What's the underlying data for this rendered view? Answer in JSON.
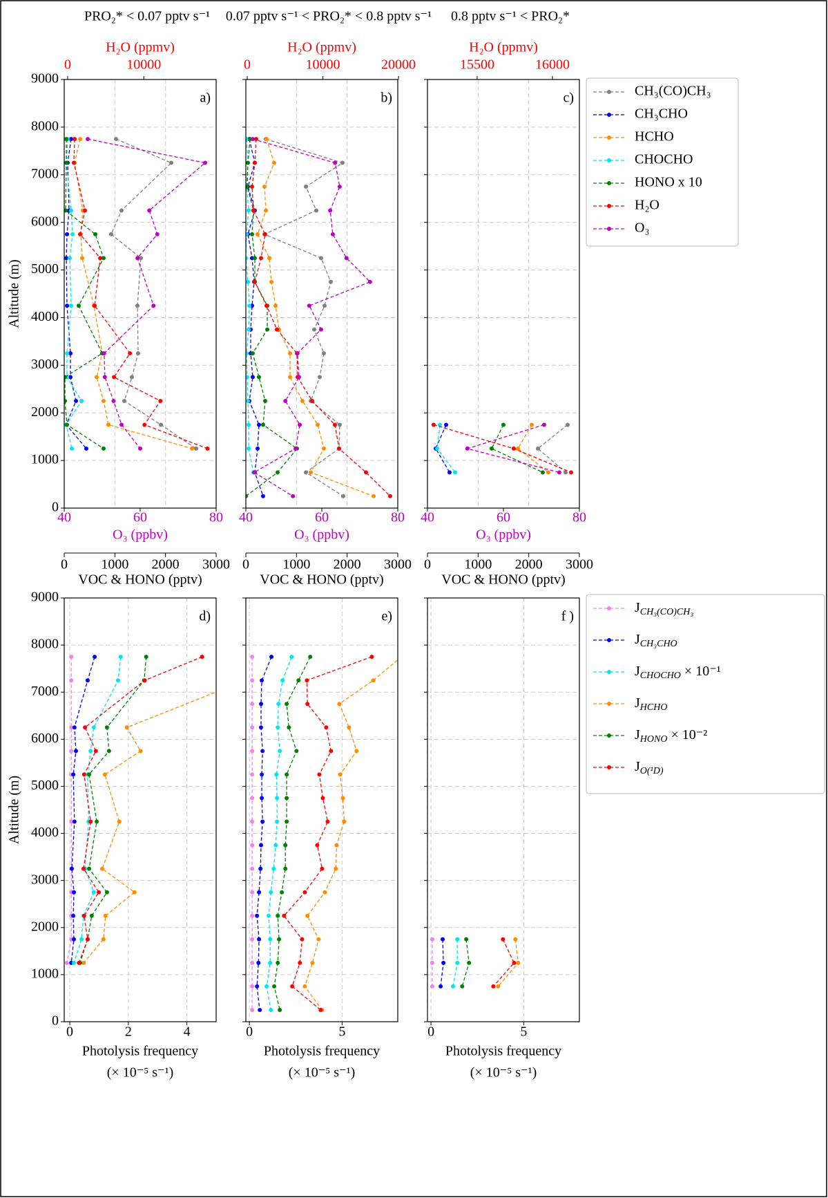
{
  "chart_data": [
    {
      "type": "line",
      "title": "PRO₂* < 0.07 pptv s⁻¹",
      "panel_label": "a)",
      "ylabel": "Altitude (m)",
      "ylim": [
        0,
        9000
      ],
      "yticks": [
        0,
        1000,
        2000,
        3000,
        4000,
        5000,
        6000,
        7000,
        8000,
        9000
      ],
      "xlabel": "VOC & HONO (pptv)",
      "xlim": [
        0,
        3000
      ],
      "xticks": [
        0,
        1000,
        2000,
        3000
      ],
      "x2label": "O₃ (ppbv)",
      "x2lim": [
        40,
        80
      ],
      "x2ticks": [
        40,
        60,
        80
      ],
      "x2color": "#bf00bf",
      "x3label": "H₂O (ppmv)",
      "x3lim": [
        -450,
        19500
      ],
      "x3ticks": [
        0,
        10000
      ],
      "x3color": "#ff0000",
      "grid": true,
      "legend": "right",
      "altitude": [
        7750,
        7250,
        6250,
        5750,
        5250,
        4250,
        3250,
        2750,
        2250,
        1750,
        1250
      ],
      "series": [
        {
          "name": "CH₃(CO)CH₃",
          "color": "#808080",
          "axis": "x",
          "values": [
            1023,
            2114,
            1132,
            927,
            1514,
            1445,
            1459,
            1336,
            1186,
            1909,
            2605
          ]
        },
        {
          "name": "CH₃CHO",
          "color": "#0000ff",
          "axis": "x",
          "values": [
            136,
            68,
            95,
            55,
            41,
            55,
            123,
            123,
            232,
            41,
            436
          ]
        },
        {
          "name": "HCHO",
          "color": "#ff8c00",
          "axis": "x",
          "values": [
            314,
            205,
            368,
            327,
            355,
            586,
            750,
            641,
            777,
            873,
            2523
          ]
        },
        {
          "name": "CHOCHO",
          "color": "#00e5ee",
          "axis": "x",
          "values": [
            68,
            41,
            136,
            164,
            109,
            136,
            55,
            55,
            341,
            41,
            150
          ]
        },
        {
          "name": "HONO x 10",
          "color": "#008000",
          "axis": "x",
          "values": [
            41,
            41,
            27,
            614,
            777,
            286,
            750,
            14,
            14,
            55,
            777
          ]
        },
        {
          "name": "H₂O",
          "color": "#ff0000",
          "axis": "x3",
          "values": [
            909,
            818,
            2273,
            1636,
            4273,
            3545,
            8182,
            6091,
            12182,
            10091,
            18364
          ]
        },
        {
          "name": "O₃",
          "color": "#bf00bf",
          "axis": "x2",
          "values": [
            46.2,
            77.1,
            62.4,
            64.5,
            59.3,
            63.5,
            50.5,
            50.7,
            53,
            55.1,
            60
          ]
        }
      ]
    },
    {
      "type": "line",
      "title": "0.07 pptv s⁻¹ < PRO₂* < 0.8 pptv s⁻¹",
      "panel_label": "b)",
      "ylim": [
        0,
        9000
      ],
      "yticks": [
        0,
        1000,
        2000,
        3000,
        4000,
        5000,
        6000,
        7000,
        8000,
        9000
      ],
      "xlabel": "VOC & HONO (pptv)",
      "xlim": [
        0,
        3000
      ],
      "xticks": [
        0,
        1000,
        2000,
        3000
      ],
      "x2label": "O₃ (ppbv)",
      "x2lim": [
        40,
        80
      ],
      "x2ticks": [
        40,
        60,
        80
      ],
      "x2color": "#bf00bf",
      "x3label": "H₂O (ppmv)",
      "x3lim": [
        -183,
        19909
      ],
      "x3ticks": [
        0,
        10000,
        20000
      ],
      "x3color": "#ff0000",
      "grid": true,
      "altitude": [
        7750,
        7250,
        6750,
        6250,
        5750,
        5250,
        4750,
        4250,
        3750,
        3250,
        2750,
        2250,
        1750,
        1250,
        750,
        250
      ],
      "series": [
        {
          "color": "#808080",
          "axis": "x",
          "values": [
            396,
            1909,
            1186,
            1391,
            368,
            1486,
            1677,
            1555,
            1350,
            1541,
            1459,
            1282,
            1855,
            1841,
            1186,
            1923
          ]
        },
        {
          "color": "#0000ff",
          "axis": "x",
          "values": [
            68,
            177,
            41,
            177,
            41,
            123,
            164,
            123,
            95,
            95,
            136,
            68,
            259,
            232,
            177,
            341
          ]
        },
        {
          "color": "#ff8c00",
          "axis": "x",
          "values": [
            409,
            559,
            368,
            396,
            232,
            464,
            505,
            586,
            655,
            873,
            873,
            1118,
            1418,
            1541,
            1282,
            2523
          ]
        },
        {
          "color": "#00e5ee",
          "axis": "x",
          "values": [
            14,
            41,
            14,
            55,
            14,
            0,
            41,
            68,
            55,
            14,
            27,
            41,
            55,
            55,
            150,
            null
          ]
        },
        {
          "color": "#008000",
          "axis": "x",
          "values": [
            82,
            41,
            27,
            150,
            123,
            177,
            177,
            423,
            423,
            136,
            259,
            382,
            341,
            1009,
            627,
            0
          ]
        },
        {
          "color": "#ff0000",
          "axis": "x3",
          "values": [
            1187,
            1005,
            639,
            822,
            2374,
            1826,
            1005,
            2557,
            3927,
            6575,
            6667,
            8584,
            11598,
            12146,
            15708,
            18904
          ]
        },
        {
          "color": "#bf00bf",
          "axis": "x2",
          "values": [
            41.8,
            63.5,
            64.7,
            62.2,
            62.9,
            66.5,
            72.7,
            56.7,
            59.8,
            53.6,
            54,
            50.4,
            54.2,
            53.1,
            42.2,
            52.4
          ]
        }
      ]
    },
    {
      "type": "line",
      "title": "0.8 pptv s⁻¹ < PRO₂*",
      "panel_label": "c)",
      "ylim": [
        0,
        9000
      ],
      "yticks": [
        0,
        1000,
        2000,
        3000,
        4000,
        5000,
        6000,
        7000,
        8000,
        9000
      ],
      "xlabel": "VOC & HONO (pptv)",
      "xlim": [
        0,
        3000
      ],
      "xticks": [
        0,
        1000,
        2000,
        3000
      ],
      "x2label": "O₃ (ppbv)",
      "x2lim": [
        40,
        80
      ],
      "x2ticks": [
        40,
        60,
        80
      ],
      "x2color": "#bf00bf",
      "x3label": "H₂O (ppmv)",
      "x3lim": [
        15170,
        16179
      ],
      "x3ticks": [
        15500,
        16000
      ],
      "x3color": "#ff0000",
      "grid": true,
      "altitude": [
        1750,
        1250,
        750
      ],
      "series": [
        {
          "color": "#808080",
          "axis": "x",
          "values": [
            2768,
            2182,
            2727
          ]
        },
        {
          "color": "#0000ff",
          "axis": "x",
          "values": [
            368,
            164,
            436
          ]
        },
        {
          "color": "#ff8c00",
          "axis": "x",
          "values": [
            2059,
            1786,
            2386
          ]
        },
        {
          "color": "#00e5ee",
          "axis": "x",
          "values": [
            245,
            191,
            545
          ]
        },
        {
          "color": "#008000",
          "axis": "x",
          "values": [
            1500,
            1268,
            2277
          ]
        },
        {
          "color": "#ff0000",
          "axis": "x3",
          "values": [
            15211,
            15743,
            16124
          ]
        },
        {
          "color": "#bf00bf",
          "axis": "x2",
          "values": [
            70.7,
            50.5,
            74.7
          ]
        }
      ]
    },
    {
      "type": "line",
      "panel_label": "d)",
      "ylabel": "Altitude (m)",
      "ylim": [
        0,
        9000
      ],
      "yticks": [
        0,
        1000,
        2000,
        3000,
        4000,
        5000,
        6000,
        7000,
        8000,
        9000
      ],
      "xlabel": "Photolysis frequency",
      "xlabel2": "(× 10⁻⁵ s⁻¹)",
      "xlim": [
        -0.19,
        5
      ],
      "xticks": [
        0,
        2,
        4
      ],
      "grid": true,
      "legend": "right",
      "altitude": [
        7750,
        7250,
        6250,
        5750,
        5250,
        4250,
        3250,
        2750,
        2250,
        1750,
        1250
      ],
      "series": [
        {
          "name": "JCH₃(CO)CH₃",
          "color": "#ee82ee",
          "values": [
            0.05,
            0.05,
            0.05,
            0.05,
            0.05,
            0.05,
            0.05,
            0.05,
            0.05,
            0.05,
            -0.1
          ]
        },
        {
          "name": "JCH₃CHO",
          "color": "#0000ff",
          "values": [
            0.85,
            0.61,
            0.16,
            0.21,
            0.12,
            0.16,
            0.07,
            0.14,
            0.12,
            0.14,
            0.05
          ]
        },
        {
          "name": "JCHOCHO × 10⁻¹",
          "color": "#00e5ee",
          "values": [
            1.74,
            1.65,
            0.82,
            0.71,
            0.61,
            0.64,
            0.52,
            0.82,
            0.47,
            0.4,
            0.14
          ]
        },
        {
          "name": "JHCHO",
          "color": "#ff8c00",
          "values": [
            null,
            6.0,
            1.95,
            2.42,
            1.2,
            1.69,
            1.11,
            2.21,
            1.22,
            1.15,
            0.47
          ]
        },
        {
          "name": "JHONO × 10⁻²",
          "color": "#008000",
          "values": [
            2.61,
            2.54,
            1.27,
            1.34,
            0.66,
            0.92,
            0.66,
            1.27,
            0.75,
            0.61,
            0.35
          ]
        },
        {
          "name": "JO(¹D)",
          "color": "#ff0000",
          "values": [
            4.52,
            2.56,
            0.52,
            0.89,
            0.49,
            0.71,
            0.47,
            0.99,
            0.49,
            0.61,
            0.31
          ]
        }
      ]
    },
    {
      "type": "line",
      "panel_label": "e)",
      "ylim": [
        0,
        9000
      ],
      "yticks": [
        0,
        1000,
        2000,
        3000,
        4000,
        5000,
        6000,
        7000,
        8000,
        9000
      ],
      "xlabel": "Photolysis frequency",
      "xlabel2": "(× 10⁻⁵ s⁻¹)",
      "xlim": [
        -0.19,
        8
      ],
      "xticks": [
        0,
        5
      ],
      "grid": true,
      "altitude": [
        7750,
        7250,
        6750,
        6250,
        5750,
        5250,
        4750,
        4250,
        3750,
        3250,
        2750,
        2250,
        1750,
        1250,
        750,
        250
      ],
      "series": [
        {
          "color": "#ee82ee",
          "values": [
            0.15,
            0.15,
            0.15,
            0.15,
            0.15,
            0.15,
            0.15,
            0.15,
            0.15,
            0.15,
            0.15,
            0.15,
            0.15,
            0.15,
            0.15,
            0.15
          ]
        },
        {
          "color": "#0000ff",
          "values": [
            1.19,
            0.67,
            0.63,
            0.63,
            0.71,
            0.67,
            0.67,
            0.71,
            0.63,
            0.6,
            0.52,
            0.41,
            0.52,
            0.49,
            0.41,
            0.56
          ]
        },
        {
          "color": "#00e5ee",
          "values": [
            2.28,
            1.79,
            1.57,
            1.53,
            1.64,
            1.46,
            1.49,
            1.49,
            1.42,
            1.31,
            1.16,
            1.04,
            1.12,
            1.12,
            0.93,
            1.16
          ]
        },
        {
          "color": "#ff8c00",
          "values": [
            8.2,
            6.68,
            4.85,
            5.37,
            5.78,
            4.89,
            5.04,
            5.11,
            4.7,
            4.66,
            4.07,
            3.13,
            3.73,
            3.4,
            2.99,
            3.92
          ]
        },
        {
          "color": "#008000",
          "values": [
            3.28,
            2.65,
            2.01,
            2.13,
            2.54,
            2.01,
            2.01,
            2.01,
            1.94,
            1.94,
            1.75,
            1.53,
            1.6,
            1.53,
            1.34,
            1.64
          ]
        },
        {
          "color": "#ff0000",
          "values": [
            6.6,
            3.1,
            3.13,
            4.14,
            4.4,
            3.77,
            3.96,
            4.22,
            3.66,
            3.92,
            2.99,
            1.87,
            2.84,
            2.72,
            2.31,
            3.84
          ]
        }
      ]
    },
    {
      "type": "line",
      "panel_label": "f )",
      "ylim": [
        0,
        9000
      ],
      "yticks": [
        0,
        1000,
        2000,
        3000,
        4000,
        5000,
        6000,
        7000,
        8000,
        9000
      ],
      "xlabel": "Photolysis frequency",
      "xlabel2": "(× 10⁻⁵ s⁻¹)",
      "xlim": [
        -0.19,
        8
      ],
      "xticks": [
        0,
        5
      ],
      "grid": true,
      "altitude": [
        1750,
        1250,
        750
      ],
      "series": [
        {
          "color": "#ee82ee",
          "values": [
            0.07,
            0.07,
            0.07
          ]
        },
        {
          "color": "#0000ff",
          "values": [
            0.63,
            0.67,
            0.52
          ]
        },
        {
          "color": "#00e5ee",
          "values": [
            1.42,
            1.42,
            1.19
          ]
        },
        {
          "color": "#ff8c00",
          "values": [
            4.55,
            4.7,
            3.62
          ]
        },
        {
          "color": "#008000",
          "values": [
            1.9,
            2.05,
            1.68
          ]
        },
        {
          "color": "#ff0000",
          "values": [
            3.88,
            4.48,
            3.36
          ]
        }
      ]
    }
  ]
}
